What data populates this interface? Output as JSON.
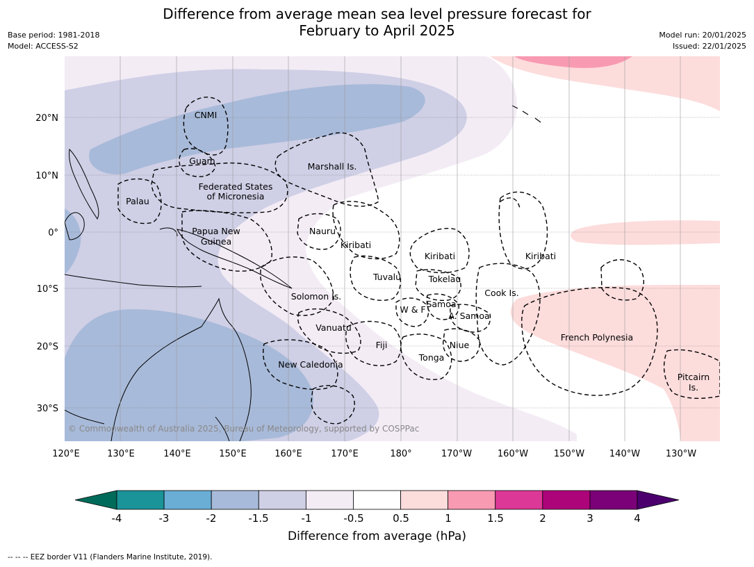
{
  "header": {
    "title_line1": "Difference from average mean sea level pressure forecast for",
    "title_line2": "February to April 2025",
    "base_period": "Base period: 1981-2018",
    "model": "Model: ACCESS-S2",
    "model_run": "Model run: 20/01/2025",
    "issued": "Issued: 22/01/2025"
  },
  "map": {
    "copyright": "© Commonwealth of Australia 2025, Bureau of Meteorology, supported by COSPPac",
    "lat_labels": [
      "20°N",
      "10°N",
      "0°",
      "10°S",
      "20°S",
      "30°S"
    ],
    "lon_labels": [
      "120°E",
      "130°E",
      "140°E",
      "150°E",
      "160°E",
      "170°E",
      "180°",
      "170°W",
      "160°W",
      "150°W",
      "140°W",
      "130°W"
    ],
    "region_labels": {
      "cnmi": "CNMI",
      "guam": "Guam",
      "marshall": "Marshall Is.",
      "fsm_line1": "Federated States",
      "fsm_line2": "of Micronesia",
      "palau": "Palau",
      "png_line1": "Papua New",
      "png_line2": "Guinea",
      "nauru": "Nauru",
      "kiribati_w": "Kiribati",
      "kiribati_c": "Kiribati",
      "kiribati_e": "Kiribati",
      "tuvalu": "Tuvalu",
      "tokelau": "Tokelau",
      "solomon": "Solomon Is.",
      "samoa": "Samoa",
      "wf": "W & F",
      "asamoa": "A. Samoa",
      "cook": "Cook Is.",
      "vanuatu": "Vanuatu",
      "fiji": "Fiji",
      "niue": "Niue",
      "tonga": "Tonga",
      "new_caledonia": "New Caledonia",
      "french_polynesia": "French Polynesia",
      "pitcairn_line1": "Pitcairn",
      "pitcairn_line2": "Is."
    }
  },
  "colorbar": {
    "title": "Difference from average (hPa)",
    "ticks": [
      "-4",
      "-3",
      "-2",
      "-1.5",
      "-1",
      "-0.5",
      "0.5",
      "1",
      "1.5",
      "2",
      "3",
      "4"
    ],
    "colors": [
      "#006b5a",
      "#1a9399",
      "#6aaed6",
      "#a8bad9",
      "#cfcfe6",
      "#f3ecf5",
      "#ffffff",
      "#fddcdc",
      "#f89ab2",
      "#dc3897",
      "#ad0479",
      "#7a0177",
      "#4b006e"
    ]
  },
  "footer": "--  --  -- EEZ border V11 (Flanders Marine Institute, 2019)."
}
